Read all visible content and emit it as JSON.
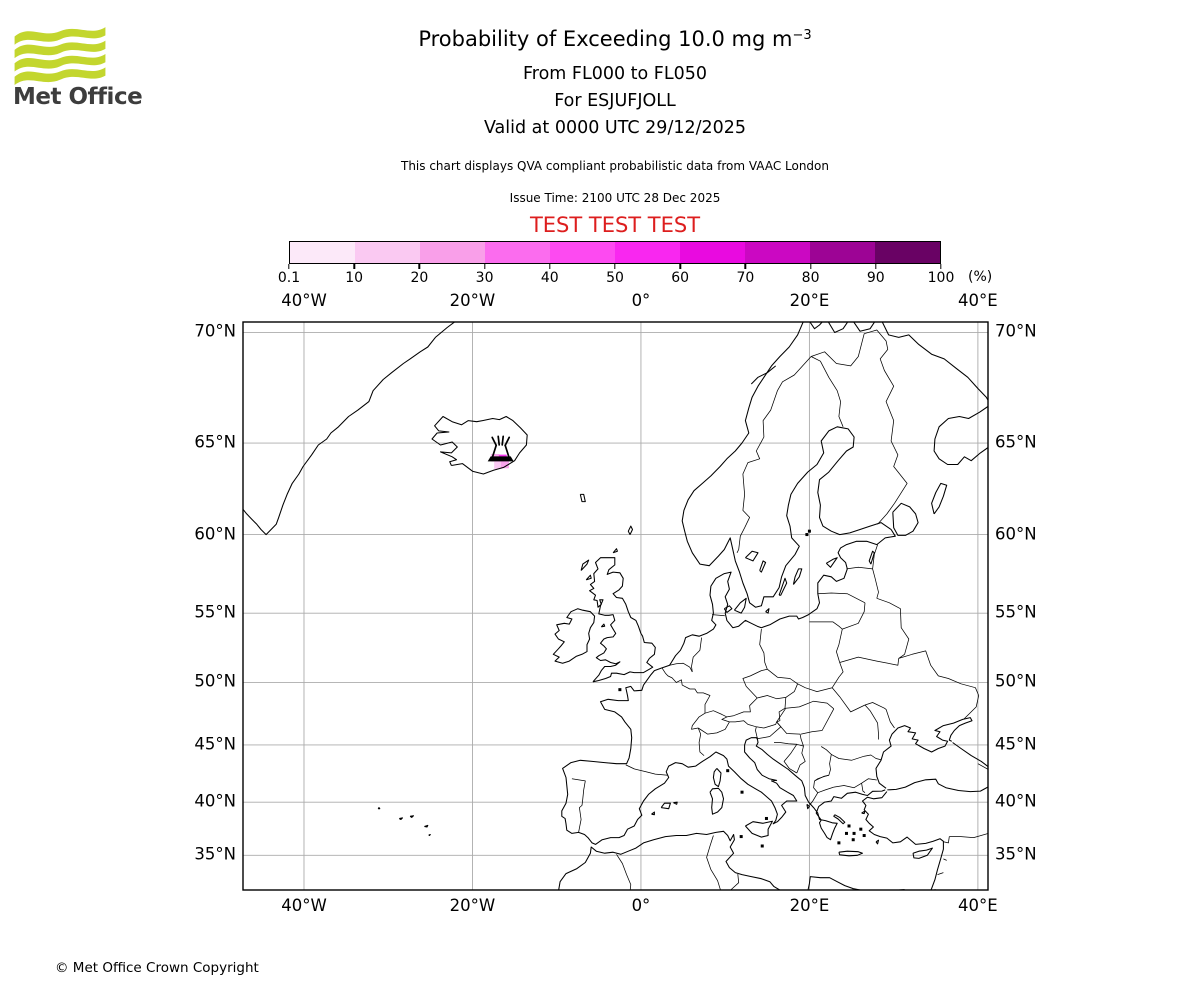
{
  "branding": {
    "logo_text": "Met Office",
    "logo_color": "#c3d62e"
  },
  "titles": {
    "main": "Probability of Exceeding 10.0 mg m",
    "main_exponent": "−3",
    "sub1": "From FL000 to FL050",
    "sub2": "For ESJUFJOLL",
    "sub3": "Valid at 0000 UTC 29/12/2025",
    "note": "This chart displays QVA compliant probabilistic data from VAAC London",
    "issue": "Issue Time: 2100 UTC 28 Dec 2025",
    "test": "TEST TEST TEST",
    "test_color": "#dd1e1e"
  },
  "colorbar": {
    "levels": [
      "0.1",
      "10",
      "20",
      "30",
      "40",
      "50",
      "60",
      "70",
      "80",
      "90",
      "100"
    ],
    "unit": "(%)",
    "colors": [
      "#fce9f9",
      "#fac9f2",
      "#f99fe9",
      "#fb6cee",
      "#fd4af1",
      "#f927f0",
      "#e90ae0",
      "#cb08c2",
      "#9d0495",
      "#690264"
    ]
  },
  "map": {
    "lon_ticks": [
      {
        "label": "40°W",
        "value": -40
      },
      {
        "label": "20°W",
        "value": -20
      },
      {
        "label": "0°",
        "value": 0
      },
      {
        "label": "20°E",
        "value": 20
      },
      {
        "label": "40°E",
        "value": 40
      }
    ],
    "lat_ticks": [
      {
        "label": "70°N",
        "value": 70
      },
      {
        "label": "65°N",
        "value": 65
      },
      {
        "label": "60°N",
        "value": 60
      },
      {
        "label": "55°N",
        "value": 55
      },
      {
        "label": "50°N",
        "value": 50
      },
      {
        "label": "45°N",
        "value": 45
      },
      {
        "label": "40°N",
        "value": 40
      },
      {
        "label": "35°N",
        "value": 35
      }
    ],
    "bounds": {
      "lon_min": -47.24,
      "lon_max": 41.2,
      "lat_min": 31.56,
      "lat_max": 70.42
    },
    "volcano": {
      "lon": -16.65,
      "lat": 64.27
    },
    "ash_cells": [
      {
        "lon": -17.3,
        "lat": 64.25,
        "color": "#f9a3ec"
      },
      {
        "lon": -16.4,
        "lat": 64.22,
        "color": "#f635ef"
      },
      {
        "lon": -16.95,
        "lat": 63.87,
        "color": "#fac9f2"
      },
      {
        "lon": -16.15,
        "lat": 63.9,
        "color": "#f9a3ec"
      }
    ]
  },
  "footer": {
    "copyright": "© Met Office Crown Copyright"
  }
}
